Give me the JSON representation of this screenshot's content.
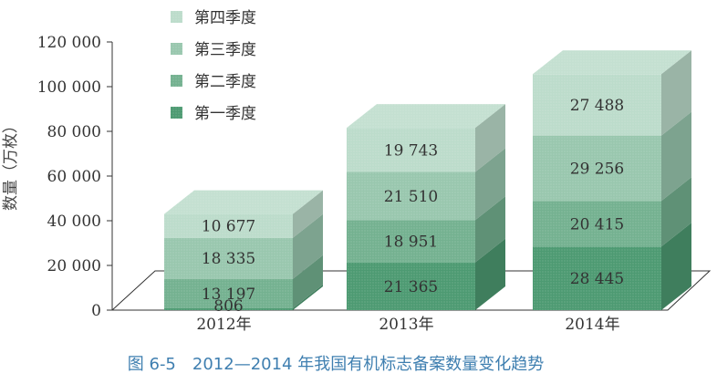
{
  "chart_data": {
    "type": "bar",
    "stacked": true,
    "three_d": true,
    "categories": [
      "2012年",
      "2013年",
      "2014年"
    ],
    "series": [
      {
        "name": "第一季度",
        "values": [
          806,
          21365,
          28445
        ]
      },
      {
        "name": "第二季度",
        "values": [
          13197,
          18951,
          20415
        ]
      },
      {
        "name": "第三季度",
        "values": [
          18335,
          21510,
          29256
        ]
      },
      {
        "name": "第四季度",
        "values": [
          10677,
          19743,
          27488
        ]
      }
    ],
    "value_labels": [
      [
        "806",
        "21 365",
        "28 445"
      ],
      [
        "13 197",
        "18 951",
        "20 415"
      ],
      [
        "18 335",
        "21 510",
        "29 256"
      ],
      [
        "10 677",
        "19 743",
        "27 488"
      ]
    ],
    "ylabel": "数量（万枚）",
    "xlabel": "",
    "ylim": [
      0,
      120000
    ],
    "yticks": [
      0,
      20000,
      40000,
      60000,
      80000,
      100000,
      120000
    ],
    "ytick_labels": [
      "0",
      "20 000",
      "40 000",
      "60 000",
      "80 000",
      "100 000",
      "120 000"
    ],
    "legend_position": "top-left",
    "grid": false,
    "colors": {
      "第一季度": "#4d9a72",
      "第二季度": "#74b190",
      "第三季度": "#99c7ae",
      "第四季度": "#bcdccb"
    }
  },
  "caption": "图 6-5　2012—2014 年我国有机标志备案数量变化趋势"
}
